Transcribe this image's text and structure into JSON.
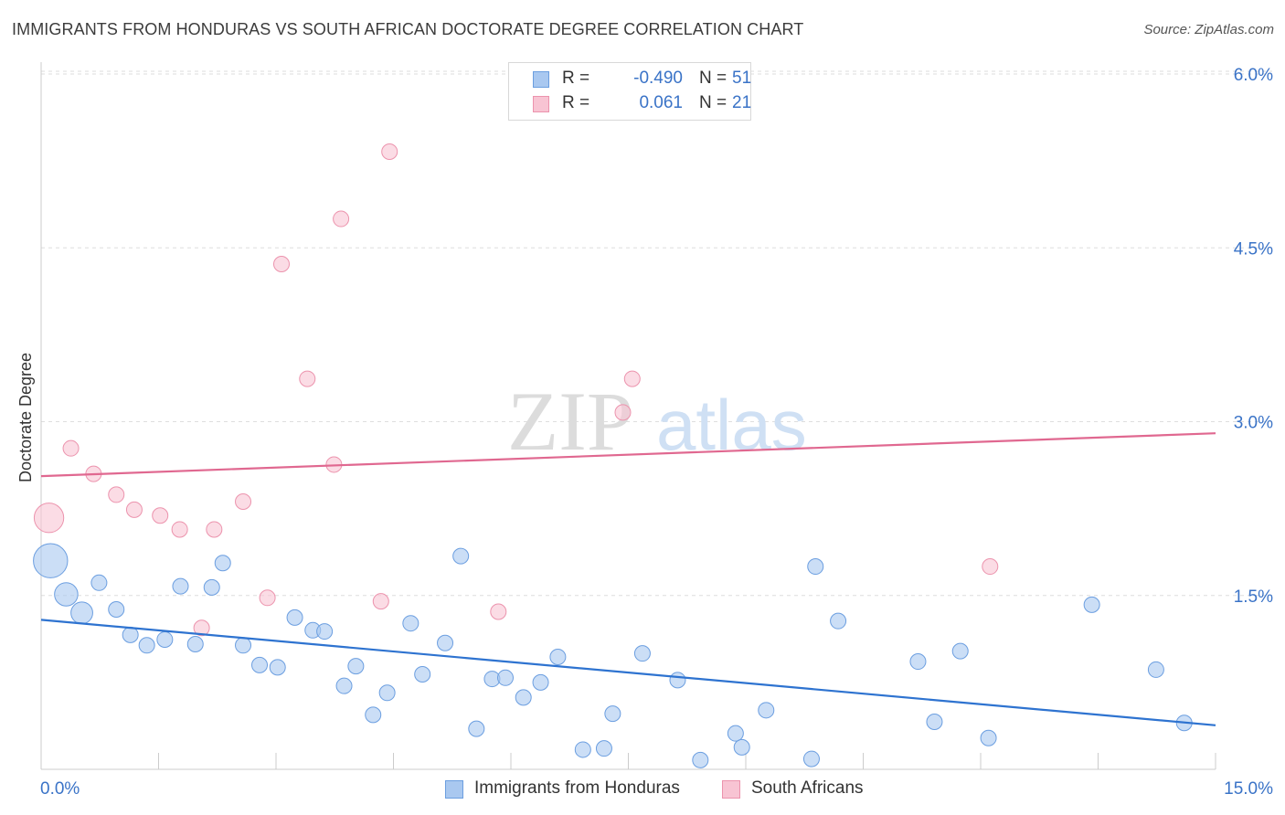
{
  "title": "IMMIGRANTS FROM HONDURAS VS SOUTH AFRICAN DOCTORATE DEGREE CORRELATION CHART",
  "source": "Source: ZipAtlas.com",
  "watermark": {
    "zip": "ZIP",
    "atlas": "atlas"
  },
  "legend": {
    "rows": [
      {
        "r_label": "R =",
        "r_value": "-0.490",
        "n_label": "N =",
        "n_value": "51",
        "color": "#a9c8f0",
        "border": "#6b9ee0"
      },
      {
        "r_label": "R =",
        "r_value": "0.061",
        "n_label": "N =",
        "n_value": "21",
        "color": "#f8c4d3",
        "border": "#ec93ad"
      }
    ]
  },
  "bottom_legend": [
    {
      "label": "Immigrants from Honduras",
      "color": "#a9c8f0",
      "border": "#6b9ee0"
    },
    {
      "label": "South Africans",
      "color": "#f8c4d3",
      "border": "#ec93ad"
    }
  ],
  "chart_data": {
    "type": "scatter",
    "title": "IMMIGRANTS FROM HONDURAS VS SOUTH AFRICAN DOCTORATE DEGREE CORRELATION CHART",
    "xlabel": "",
    "ylabel": "Doctorate Degree",
    "xlim": [
      0,
      15
    ],
    "ylim": [
      0,
      6.15
    ],
    "x_tick_labels": [
      "0.0%",
      "15.0%"
    ],
    "y_ticks": [
      1.5,
      3.0,
      4.5,
      6.0
    ],
    "y_tick_labels": [
      "1.5%",
      "3.0%",
      "4.5%",
      "6.0%"
    ],
    "grid": true,
    "legend_position": "top-center",
    "series": [
      {
        "name": "Immigrants from Honduras",
        "color": "#a9c8f0",
        "border": "#6b9ee0",
        "line_color": "#2e73d0",
        "trend": {
          "x": [
            0,
            15
          ],
          "y": [
            1.29,
            0.38
          ]
        },
        "points": [
          {
            "x": 0.12,
            "y": 1.8,
            "s": 2.2
          },
          {
            "x": 0.32,
            "y": 1.51,
            "s": 1.5
          },
          {
            "x": 0.52,
            "y": 1.35,
            "s": 1.4
          },
          {
            "x": 0.74,
            "y": 1.61,
            "s": 1
          },
          {
            "x": 0.96,
            "y": 1.38,
            "s": 1
          },
          {
            "x": 1.14,
            "y": 1.16,
            "s": 1
          },
          {
            "x": 1.35,
            "y": 1.07,
            "s": 1
          },
          {
            "x": 1.58,
            "y": 1.12,
            "s": 1
          },
          {
            "x": 1.78,
            "y": 1.58,
            "s": 1
          },
          {
            "x": 1.97,
            "y": 1.08,
            "s": 1
          },
          {
            "x": 2.18,
            "y": 1.57,
            "s": 1
          },
          {
            "x": 2.32,
            "y": 1.78,
            "s": 1
          },
          {
            "x": 2.58,
            "y": 1.07,
            "s": 1
          },
          {
            "x": 2.79,
            "y": 0.9,
            "s": 1
          },
          {
            "x": 3.02,
            "y": 0.88,
            "s": 1
          },
          {
            "x": 3.24,
            "y": 1.31,
            "s": 1
          },
          {
            "x": 3.47,
            "y": 1.2,
            "s": 1
          },
          {
            "x": 3.62,
            "y": 1.19,
            "s": 1
          },
          {
            "x": 3.87,
            "y": 0.72,
            "s": 1
          },
          {
            "x": 4.02,
            "y": 0.89,
            "s": 1
          },
          {
            "x": 4.24,
            "y": 0.47,
            "s": 1
          },
          {
            "x": 4.42,
            "y": 0.66,
            "s": 1
          },
          {
            "x": 4.87,
            "y": 0.82,
            "s": 1
          },
          {
            "x": 4.72,
            "y": 1.26,
            "s": 1
          },
          {
            "x": 5.16,
            "y": 1.09,
            "s": 1
          },
          {
            "x": 5.36,
            "y": 1.84,
            "s": 1
          },
          {
            "x": 5.56,
            "y": 0.35,
            "s": 1
          },
          {
            "x": 5.76,
            "y": 0.78,
            "s": 1
          },
          {
            "x": 5.93,
            "y": 0.79,
            "s": 1
          },
          {
            "x": 6.16,
            "y": 0.62,
            "s": 1
          },
          {
            "x": 6.38,
            "y": 0.75,
            "s": 1
          },
          {
            "x": 6.6,
            "y": 0.97,
            "s": 1
          },
          {
            "x": 6.92,
            "y": 0.17,
            "s": 1
          },
          {
            "x": 7.19,
            "y": 0.18,
            "s": 1
          },
          {
            "x": 7.3,
            "y": 0.48,
            "s": 1
          },
          {
            "x": 7.68,
            "y": 1.0,
            "s": 1
          },
          {
            "x": 8.13,
            "y": 0.77,
            "s": 1
          },
          {
            "x": 8.42,
            "y": 0.08,
            "s": 1
          },
          {
            "x": 8.87,
            "y": 0.31,
            "s": 1
          },
          {
            "x": 8.95,
            "y": 0.19,
            "s": 1
          },
          {
            "x": 9.26,
            "y": 0.51,
            "s": 1
          },
          {
            "x": 9.84,
            "y": 0.09,
            "s": 1
          },
          {
            "x": 9.89,
            "y": 1.75,
            "s": 1
          },
          {
            "x": 10.18,
            "y": 1.28,
            "s": 1
          },
          {
            "x": 11.2,
            "y": 0.93,
            "s": 1
          },
          {
            "x": 11.41,
            "y": 0.41,
            "s": 1
          },
          {
            "x": 11.74,
            "y": 1.02,
            "s": 1
          },
          {
            "x": 12.1,
            "y": 0.27,
            "s": 1
          },
          {
            "x": 13.42,
            "y": 1.42,
            "s": 1
          },
          {
            "x": 14.24,
            "y": 0.86,
            "s": 1
          },
          {
            "x": 14.6,
            "y": 0.4,
            "s": 1
          }
        ]
      },
      {
        "name": "South Africans",
        "color": "#f8c4d3",
        "border": "#ec93ad",
        "line_color": "#e06890",
        "trend": {
          "x": [
            0,
            15
          ],
          "y": [
            2.53,
            2.9
          ]
        },
        "points": [
          {
            "x": 0.1,
            "y": 2.17,
            "s": 1.9
          },
          {
            "x": 0.38,
            "y": 2.77,
            "s": 1
          },
          {
            "x": 0.67,
            "y": 2.55,
            "s": 1
          },
          {
            "x": 0.96,
            "y": 2.37,
            "s": 1
          },
          {
            "x": 1.19,
            "y": 2.24,
            "s": 1
          },
          {
            "x": 1.52,
            "y": 2.19,
            "s": 1
          },
          {
            "x": 1.77,
            "y": 2.07,
            "s": 1
          },
          {
            "x": 2.05,
            "y": 1.22,
            "s": 1
          },
          {
            "x": 2.21,
            "y": 2.07,
            "s": 1
          },
          {
            "x": 2.58,
            "y": 2.31,
            "s": 1
          },
          {
            "x": 2.89,
            "y": 1.48,
            "s": 1
          },
          {
            "x": 3.07,
            "y": 4.36,
            "s": 1
          },
          {
            "x": 3.4,
            "y": 3.37,
            "s": 1
          },
          {
            "x": 3.74,
            "y": 2.63,
            "s": 1
          },
          {
            "x": 3.83,
            "y": 4.75,
            "s": 1
          },
          {
            "x": 4.34,
            "y": 1.45,
            "s": 1
          },
          {
            "x": 4.45,
            "y": 5.33,
            "s": 1
          },
          {
            "x": 5.84,
            "y": 1.36,
            "s": 1
          },
          {
            "x": 7.43,
            "y": 3.08,
            "s": 1
          },
          {
            "x": 7.55,
            "y": 3.37,
            "s": 1
          },
          {
            "x": 12.12,
            "y": 1.75,
            "s": 1
          }
        ]
      }
    ]
  }
}
